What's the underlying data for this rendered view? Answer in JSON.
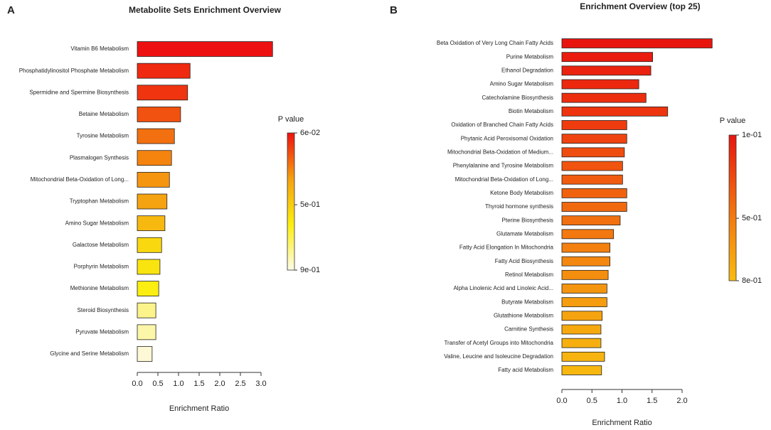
{
  "chart_data": [
    {
      "type": "bar",
      "orientation": "horizontal",
      "panel": "A",
      "title": "Metabolite Sets Enrichment Overview",
      "x_label": "Enrichment Ratio",
      "categories": [
        "Vitamin B6 Metabolism",
        "Phosphatidylinositol Phosphate Metabolism",
        "Spermidine and Spermine Biosynthesis",
        "Betaine Metabolism",
        "Tyrosine Metabolism",
        "Plasmalogen Synthesis",
        "Mitochondrial Beta-Oxidation of Long...",
        "Tryptophan Metabolism",
        "Amino Sugar Metabolism",
        "Galactose Metabolism",
        "Porphyrin Metabolism",
        "Methionine Metabolism",
        "Steroid Biosynthesis",
        "Pyruvate Metabolism",
        "Glycine and Serine Metabolism"
      ],
      "values": [
        3.28,
        1.28,
        1.22,
        1.05,
        0.9,
        0.83,
        0.78,
        0.72,
        0.67,
        0.59,
        0.55,
        0.52,
        0.45,
        0.45,
        0.36
      ],
      "colors": [
        "#ee1111",
        "#ef2a10",
        "#f03410",
        "#f2520f",
        "#f2700f",
        "#f5840f",
        "#f59510",
        "#f5a310",
        "#f7b810",
        "#f9d810",
        "#fae410",
        "#fbee10",
        "#fcf48a",
        "#fcf6a8",
        "#fdf8d6"
      ],
      "xlim": [
        0,
        3.3
      ],
      "xticks": [
        {
          "value": 0,
          "label": "0.0"
        },
        0.5,
        {
          "value": 1,
          "label": "1.0"
        },
        1.5,
        {
          "value": 2,
          "label": "2.0"
        },
        2.5,
        {
          "value": 3,
          "label": "3.0"
        }
      ],
      "colorbar": {
        "title": "P value",
        "lim": [
          0.06,
          0.9
        ],
        "colors": [
          "#ee1111",
          "#f5a010",
          "#fbee10",
          "#fdfbe8"
        ],
        "ticks": [
          {
            "value": 0.06,
            "label": "6e-02"
          },
          {
            "value": 0.5,
            "label": "5e-01"
          },
          {
            "value": 0.9,
            "label": "9e-01"
          }
        ]
      }
    },
    {
      "type": "bar",
      "orientation": "horizontal",
      "panel": "B",
      "title": "Enrichment Overview (top 25)",
      "x_label": "Enrichment Ratio",
      "categories": [
        "Beta Oxidation of Very Long Chain Fatty Acids",
        "Purine Metabolism",
        "Ethanol Degradation",
        "Amino Sugar Metabolism",
        "Catecholamine Biosynthesis",
        "Biotin Metabolism",
        "Oxidation of Branched Chain Fatty Acids",
        "Phytanic Acid Peroxisomal Oxidation",
        "Mitochondrial Beta-Oxidation of Medium...",
        "Phenylalanine and Tyrosine Metabolism",
        "Mitochondrial Beta-Oxidation of Long...",
        "Ketone Body Metabolism",
        "Thyroid hormone synthesis",
        "Pterine Biosynthesis",
        "Glutamate Metabolism",
        "Fatty Acid Elongation In Mitochondria",
        "Fatty Acid Biosynthesis",
        "Retinol Metabolism",
        "Alpha Linolenic Acid and Linoleic Acid...",
        "Butyrate Metabolism",
        "Glutathione Metabolism",
        "Carnitine Synthesis",
        "Transfer of Acetyl Groups into Mitochondria",
        "Valine, Leucine and Isoleucine Degradation",
        "Fatty acid Metabolism"
      ],
      "values": [
        2.5,
        1.51,
        1.48,
        1.28,
        1.4,
        1.76,
        1.08,
        1.08,
        1.04,
        1.01,
        1.01,
        1.08,
        1.08,
        0.97,
        0.86,
        0.8,
        0.8,
        0.77,
        0.75,
        0.75,
        0.67,
        0.65,
        0.65,
        0.71,
        0.66
      ],
      "colors": [
        "#e8150f",
        "#ea1c0f",
        "#eb220f",
        "#ec280f",
        "#ec2e0f",
        "#ed340f",
        "#ee3c0f",
        "#ef440f",
        "#ef4c0f",
        "#f0540f",
        "#f05b0f",
        "#f1620f",
        "#f1690f",
        "#f2700f",
        "#f2780f",
        "#f3800f",
        "#f3870f",
        "#f48e0f",
        "#f4950f",
        "#f59c0f",
        "#f5a30f",
        "#f6a90f",
        "#f6af0f",
        "#f7b30f",
        "#f7b70f"
      ],
      "xlim": [
        0,
        2.5
      ],
      "xticks": [
        {
          "value": 0,
          "label": "0.0"
        },
        0.5,
        {
          "value": 1,
          "label": "1.0"
        },
        1.5,
        {
          "value": 2,
          "label": "2.0"
        }
      ],
      "colorbar": {
        "title": "P value",
        "lim": [
          0.1,
          0.8
        ],
        "colors": [
          "#e8150f",
          "#f2700f",
          "#f8bc10"
        ],
        "ticks": [
          {
            "value": 0.1,
            "label": "1e-01"
          },
          {
            "value": 0.5,
            "label": "5e-01"
          },
          {
            "value": 0.8,
            "label": "8e-01"
          }
        ]
      }
    }
  ]
}
